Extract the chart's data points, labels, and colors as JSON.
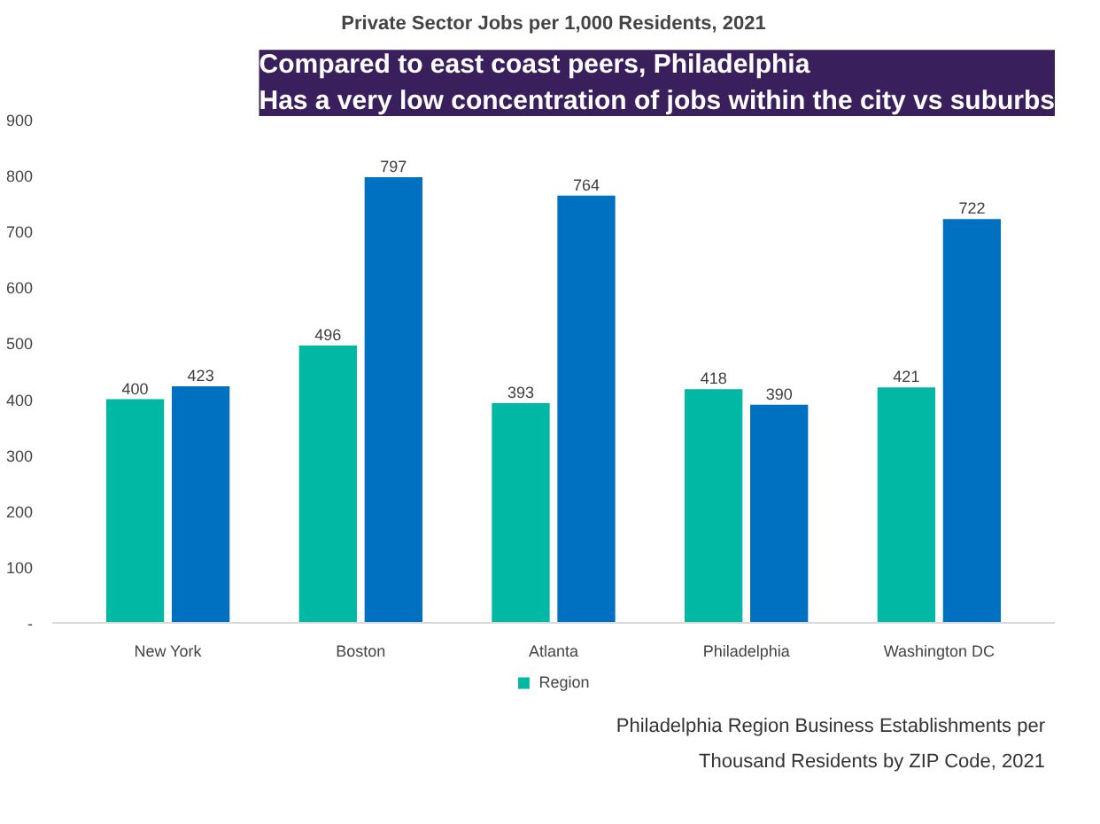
{
  "chart_data": {
    "type": "bar",
    "title": "Private Sector Jobs per 1,000 Residents, 2021",
    "subtitle": "Compared to east coast peers, Philadelphia\nHas a very low concentration of jobs within the city vs suburbs",
    "categories": [
      "New York",
      "Boston",
      "Atlanta",
      "Philadelphia",
      "Washington DC"
    ],
    "series": [
      {
        "name": "Region",
        "color": "#00b8a3",
        "values": [
          400,
          496,
          393,
          418,
          421
        ]
      },
      {
        "color": "#0070c0",
        "values": [
          423,
          797,
          764,
          390,
          722
        ]
      }
    ],
    "ylim": [
      0,
      900
    ],
    "yticks": [
      {
        "value": 0,
        "label": "-"
      },
      100,
      200,
      300,
      400,
      500,
      600,
      700,
      800,
      900
    ],
    "data_labels": true,
    "legend": "bottom",
    "grid": false,
    "annotations": [
      "Philadelphia Region Business Establishments per\nThousand Residents by ZIP Code, 2021"
    ]
  }
}
